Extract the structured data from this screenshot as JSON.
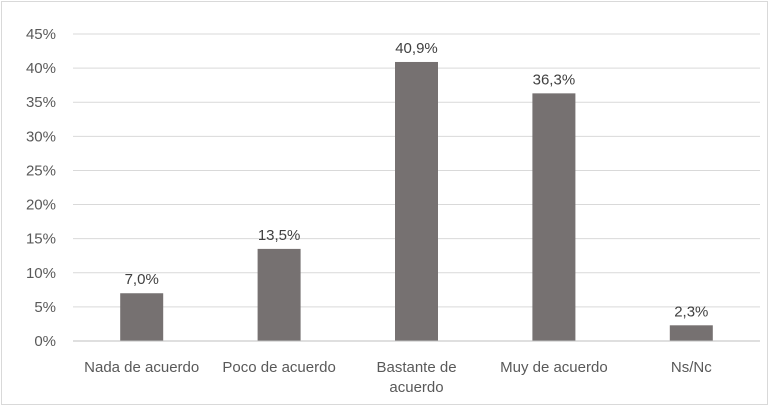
{
  "chart_data": {
    "type": "bar",
    "categories": [
      [
        "Nada de acuerdo"
      ],
      [
        "Poco de acuerdo"
      ],
      [
        "Bastante de",
        "acuerdo"
      ],
      [
        "Muy de acuerdo"
      ],
      [
        "Ns/Nc"
      ]
    ],
    "values": [
      7.0,
      13.5,
      40.9,
      36.3,
      2.3
    ],
    "data_labels": [
      "7,0%",
      "13,5%",
      "40,9%",
      "36,3%",
      "2,3%"
    ],
    "y_ticks": [
      0,
      5,
      10,
      15,
      20,
      25,
      30,
      35,
      40,
      45
    ],
    "y_tick_labels": [
      "0%",
      "5%",
      "10%",
      "15%",
      "20%",
      "25%",
      "30%",
      "35%",
      "40%",
      "45%"
    ],
    "ylim": [
      0,
      45
    ],
    "grid": true,
    "legend": "none",
    "colors": {
      "bar": "#767171",
      "grid": "#d9d9d9",
      "axis": "#bfbfbf"
    }
  }
}
